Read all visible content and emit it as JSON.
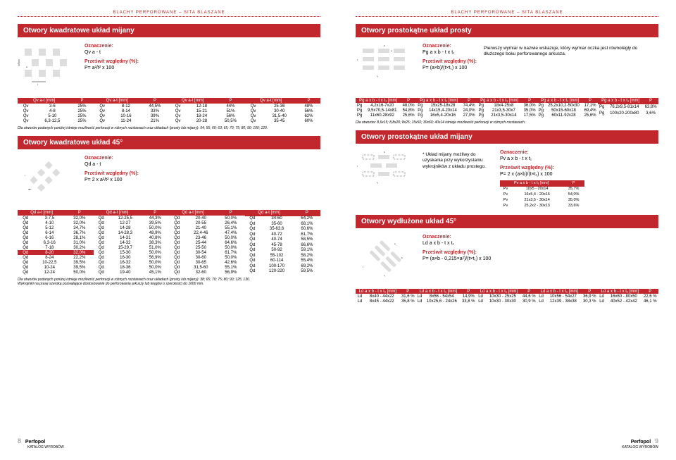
{
  "hdr": "BLACHY PERFOROWANE – SITA BLASZANE",
  "s1": {
    "title": "Otwory kwadratowe układ mijany",
    "ozn": "Oznaczenie:",
    "sym": "Qv a - t",
    "pw": "Prześwit względny (%):",
    "fm": "P= a²/t² x 100"
  },
  "s2": {
    "title": "Otwory kwadratowe układ 45°",
    "ozn": "Oznaczenie:",
    "sym": "Qd a - t",
    "pw": "Prześwit względny (%):",
    "fm": "P= 2 x a²/t² x 100"
  },
  "s3": {
    "title": "Otwory prostokątne układ prosty",
    "ozn": "Oznaczenie:",
    "sym": "Pg a x b - t x t₁",
    "pw": "Prześwit względny (%):",
    "fm": "P= (a×b)/(t×t₁) x 100",
    "info": "Pierwszy wymiar w nazwie wskazuje, który wymiar oczka jest równoległy do dłuższego boku perforowanego arkusza."
  },
  "s4": {
    "title": "Otwory prostokątne układ mijany",
    "ozn": "Oznaczenie:",
    "sym": "Pv a x b - t x t₁",
    "pw": "Prześwit względny (%):",
    "fm": "P= 2 x (a×b)/(t×t₁) x 100",
    "info": "* Układ mijany możliwy do uzyskania przy wykorzystaniu wykrojników z układu prostego."
  },
  "s5": {
    "title": "Otwory wydłużone układ 45°",
    "ozn": "Oznaczenie:",
    "sym": "Ld a x b - t x t₁",
    "pw": "Prześwit względny (%):",
    "fm": "P= (a×b - 0,215×a²)/(t×t₁) x 100"
  },
  "qv": {
    "h": [
      "Qv a-t [mm]",
      "P"
    ],
    "c1": [
      [
        "Qv",
        "3-6",
        "25%"
      ],
      [
        "Qv",
        "4-8",
        "25%"
      ],
      [
        "Qv",
        "5-10",
        "25%"
      ],
      [
        "Qv",
        "6,3-12,5",
        "25%"
      ]
    ],
    "c2": [
      [
        "Qv",
        "8-12",
        "44,5%"
      ],
      [
        "Qv",
        "8-14",
        "33%"
      ],
      [
        "Qv",
        "10-16",
        "39%"
      ],
      [
        "Qv",
        "11-24",
        "21%"
      ]
    ],
    "c3": [
      [
        "Qv",
        "12-18",
        "44%"
      ],
      [
        "Qv",
        "15-21",
        "51%"
      ],
      [
        "Qv",
        "18-24",
        "56%"
      ],
      [
        "Qv",
        "20-28",
        "50,5%"
      ]
    ],
    "c4": [
      [
        "Qv",
        "25-36",
        "48%"
      ],
      [
        "Qv",
        "30-40",
        "56%"
      ],
      [
        "Qv",
        "31,5-40",
        "62%"
      ],
      [
        "Qv",
        "35-45",
        "60%"
      ]
    ]
  },
  "qd": {
    "h": [
      "Qd a-t [mm]",
      "P"
    ],
    "c1": [
      [
        "Qd",
        "3-7,5",
        "32,0%"
      ],
      [
        "Qd",
        "4-10",
        "32,0%"
      ],
      [
        "Qd",
        "5-12",
        "34,7%"
      ],
      [
        "Qd",
        "6-14",
        "36,7%"
      ],
      [
        "Qd",
        "6-16",
        "28,1%"
      ],
      [
        "Qd",
        "6,3-16",
        "31,0%"
      ],
      [
        "Qd",
        "7-18",
        "30,2%"
      ],
      [
        "Qd",
        "8-20",
        "32,0%",
        "hl"
      ],
      [
        "Qd",
        "8-24",
        "22,2%"
      ],
      [
        "Qd",
        "10-22,5",
        "39,5%"
      ],
      [
        "Qd",
        "10-24",
        "39,5%"
      ],
      [
        "Qd",
        "12-24",
        "50,0%"
      ]
    ],
    "c2": [
      [
        "Qd",
        "12-25,5",
        "44,3%"
      ],
      [
        "Qd",
        "12-27",
        "39,5%"
      ],
      [
        "Qd",
        "14-28",
        "50,0%"
      ],
      [
        "Qd",
        "14-28,3",
        "48,9%"
      ],
      [
        "Qd",
        "14-31",
        "40,8%"
      ],
      [
        "Qd",
        "14-32",
        "38,3%"
      ],
      [
        "Qd",
        "15-29,7",
        "51,0%"
      ],
      [
        "Qd",
        "15-30",
        "50,0%"
      ],
      [
        "Qd",
        "16-30",
        "56,9%"
      ],
      [
        "Qd",
        "16-32",
        "50,0%"
      ],
      [
        "Qd",
        "18-36",
        "50,0%"
      ],
      [
        "Qd",
        "19-40",
        "45,1%"
      ]
    ],
    "c3": [
      [
        "Qd",
        "20-40",
        "50,0%"
      ],
      [
        "Qd",
        "20-55",
        "26,4%"
      ],
      [
        "Qd",
        "21-40",
        "55,1%"
      ],
      [
        "Qd",
        "22,4-46",
        "47,4%"
      ],
      [
        "Qd",
        "23-46",
        "50,0%"
      ],
      [
        "Qd",
        "25-44",
        "64,6%"
      ],
      [
        "Qd",
        "25-50",
        "50,0%"
      ],
      [
        "Qd",
        "30-54",
        "61,7%"
      ],
      [
        "Qd",
        "30-60",
        "50,0%"
      ],
      [
        "Qd",
        "30-65",
        "42,6%"
      ],
      [
        "Qd",
        "31,5-60",
        "55,1%"
      ],
      [
        "Qd",
        "32-60",
        "56,9%"
      ]
    ],
    "c4": [
      [
        "Qd",
        "34-60",
        "64,2%"
      ],
      [
        "Qd",
        "35-60",
        "68,1%"
      ],
      [
        "Qd",
        "35-63,6",
        "60,6%"
      ],
      [
        "Qd",
        "40-72",
        "61,7%"
      ],
      [
        "Qd",
        "40-74",
        "58,5%"
      ],
      [
        "Qd",
        "45-78",
        "66,6%"
      ],
      [
        "Qd",
        "50-92",
        "59,1%"
      ],
      [
        "Qd",
        "55-102",
        "58,2%"
      ],
      [
        "Qd",
        "60-114",
        "55,4%"
      ],
      [
        "Qd",
        "100-170",
        "69,2%"
      ],
      [
        "Qd",
        "120-220",
        "59,5%"
      ],
      [
        "",
        "",
        ""
      ]
    ]
  },
  "pg": {
    "h": [
      "Pg a x b - t x t₁ [mm]",
      "P"
    ],
    "c1": [
      [
        "Pg",
        "4,2x16-7x20",
        "48,0%"
      ],
      [
        "Pg",
        "9,5x70,5-14x81",
        "54,8%"
      ],
      [
        "Pg",
        "11x60-28x92",
        "25,6%"
      ]
    ],
    "c2": [
      [
        "Pg",
        "15x25-18x28",
        "74,4%"
      ],
      [
        "Pg",
        "14x15,4-20x14",
        "24,0%"
      ],
      [
        "Pg",
        "16x5,4-20x16",
        "27,0%"
      ]
    ],
    "c3": [
      [
        "Pg",
        "18x4-25x8",
        "36,0%"
      ],
      [
        "Pg",
        "21x3,5-30x7",
        "35,0%"
      ],
      [
        "Pg",
        "21x3,5-30x14",
        "17,5%"
      ]
    ],
    "c4": [
      [
        "Pg",
        "25,2x10,2-50x30",
        "17,1%"
      ],
      [
        "Pg",
        "50x15-60x18",
        "69,4%"
      ],
      [
        "Pg",
        "60x11-92x28",
        "25,6%"
      ]
    ],
    "c5": [
      [
        "Pg",
        "76,2x9,5-81x14",
        "63,8%"
      ],
      [
        "Pg",
        "100x20-200x80",
        "3,6%"
      ],
      [
        "",
        "",
        ""
      ]
    ]
  },
  "pv": {
    "h": [
      "Pv a x b - t x t₁ [mm]",
      "P"
    ],
    "r": [
      [
        "Pv",
        "10x5 - 20x14",
        "35,7%"
      ],
      [
        "Pv",
        "16x5,4 - 20x16",
        "54,0%"
      ],
      [
        "Pv",
        "21x3,5 - 30x14",
        "35,0%"
      ],
      [
        "Pv",
        "25,2x2 - 30x13",
        "33,6%"
      ]
    ]
  },
  "ld": {
    "h": [
      "Ld a x b - t x t₁ [mm]",
      "P"
    ],
    "c1": [
      [
        "Ld",
        "8x40 - 44x22",
        "31,6 %"
      ],
      [
        "Ld",
        "8x45 - 44x22",
        "35,8 %"
      ]
    ],
    "c2": [
      [
        "Ld",
        "8x56 - 54x54",
        "14,9%"
      ],
      [
        "Ld",
        "10x25,6 - 24x26",
        "33,8 %"
      ]
    ],
    "c3": [
      [
        "Ld",
        "10x30 - 25x25",
        "44,6 %"
      ],
      [
        "Ld",
        "10x30 - 30x30",
        "30,9 %"
      ]
    ],
    "c4": [
      [
        "Ld",
        "10x56 - 54x27",
        "36,9 %"
      ],
      [
        "Ld",
        "12x39 - 38x38",
        "30,3 %"
      ]
    ],
    "c5": [
      [
        "Ld",
        "16x60 - 80x50",
        "22,6 %"
      ],
      [
        "Ld",
        "40x52 - 42x42",
        "46,1 %"
      ]
    ]
  },
  "n1": "Dla otworów podanych poniżej istnieje możliwość perforacji w różnych rozstawach oraz układach (prosty lub mijany): 54; 55; 60; 63; 65; 70; 75; 80; 90; 100; 120.",
  "n2": "Dla otworów podanych poniżej istnieje możliwość perforacji w różnych rozstawach oraz układach (prosty lub mijany): 38; 65; 70; 75; 80; 90; 125; 130.",
  "n2b": "Wykrojniki na prasę szeroką pozwalające dostosowanie do perforowania arkuszy lub kręgów o szerokości do 1600 mm.",
  "n3": "Dla otworów: 8,6x15; 8,8x20; 8x25; 15x50; 30x60; 40x14 istnieje możliwość perforacji w różnych rozstawach.",
  "ft": {
    "brand": "Perfopol",
    "sub": "KATALOG WYROBÓW",
    "pl": "8",
    "pr": "9"
  }
}
